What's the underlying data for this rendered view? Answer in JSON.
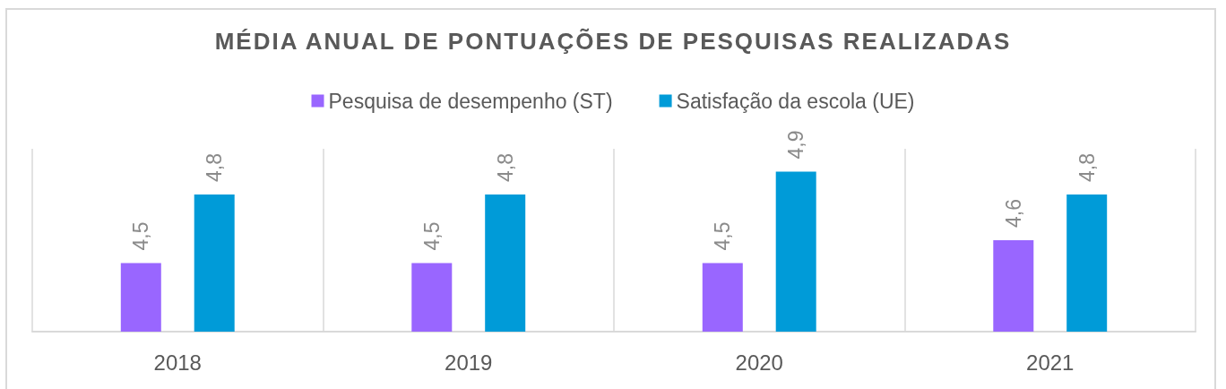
{
  "chart_data": {
    "type": "bar",
    "title": "MÉDIA ANUAL DE PONTUAÇÕES DE PESQUISAS REALIZADAS",
    "categories": [
      "2018",
      "2019",
      "2020",
      "2021"
    ],
    "series": [
      {
        "name": "Pesquisa de desempenho (ST)",
        "color": "#9966ff",
        "values": [
          4.5,
          4.5,
          4.5,
          4.6
        ],
        "value_labels": [
          "4,5",
          "4,5",
          "4,5",
          "4,6"
        ]
      },
      {
        "name": "Satisfação da escola (UE)",
        "color": "#009bd8",
        "values": [
          4.8,
          4.8,
          4.9,
          4.8
        ],
        "value_labels": [
          "4,8",
          "4,8",
          "4,9",
          "4,8"
        ]
      }
    ],
    "ylim": [
      4.2,
      5
    ],
    "grid": "x",
    "legend": "top",
    "tick_labels": "x"
  }
}
